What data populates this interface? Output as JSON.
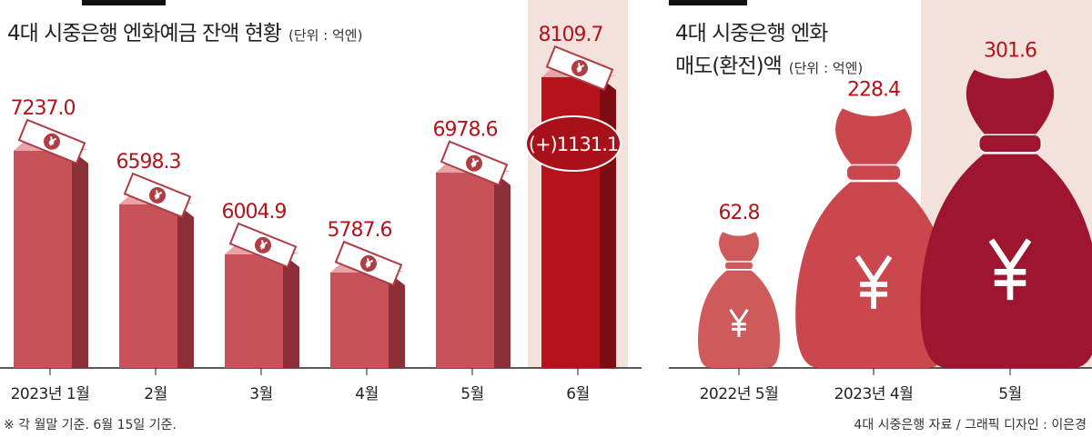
{
  "chart_data": [
    {
      "type": "bar",
      "title": "4대 시중은행 엔화예금 잔액 현황",
      "unit": "(단위 : 억엔)",
      "categories": [
        "2023년 1월",
        "2월",
        "3월",
        "4월",
        "5월",
        "6월"
      ],
      "values": [
        7237.0,
        6598.3,
        6004.9,
        5787.6,
        6978.6,
        8109.7
      ],
      "value_labels": [
        "7237.0",
        "6598.3",
        "6004.9",
        "5787.6",
        "6978.6",
        "8109.7"
      ],
      "colors": [
        "#c8525a",
        "#c8525a",
        "#c8525a",
        "#c8525a",
        "#c8525a",
        "#b5121b"
      ],
      "annotation": "(+)1131.1",
      "note": "※ 각 월말 기준. 6월 15일 기준."
    },
    {
      "type": "bag",
      "title": [
        "4대 시중은행 엔화",
        "매도(환전)액"
      ],
      "unit": "(단위 : 억엔)",
      "categories": [
        "2022년 5월",
        "2023년 4월",
        "5월"
      ],
      "values": [
        62.8,
        228.4,
        301.6
      ],
      "colors": [
        "#cf5a5c",
        "#c9474d",
        "#9e1530"
      ],
      "source": "4대 시중은행 자료 / 그래픽 디자인 : 이은경"
    }
  ]
}
